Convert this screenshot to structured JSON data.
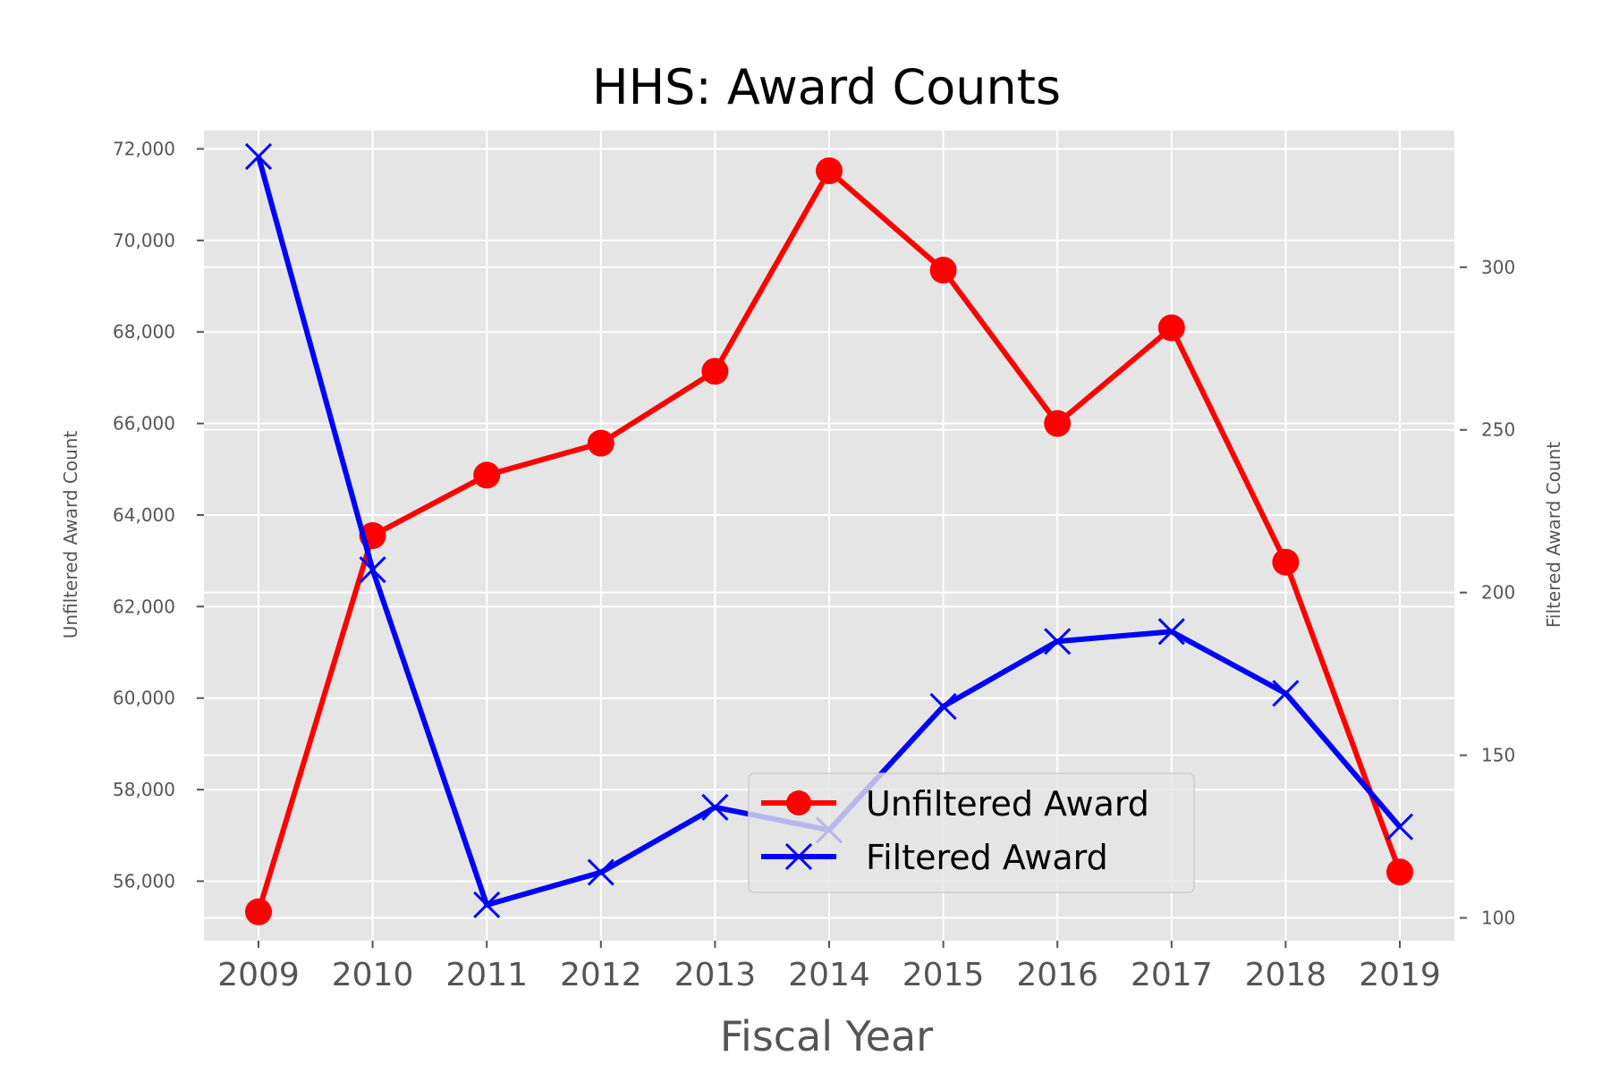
{
  "chart_data": {
    "type": "line",
    "title": "HHS: Award Counts",
    "xlabel": "Fiscal Year",
    "ylabel_left": "Unfiltered Award Count",
    "ylabel_right": "Filtered Award Count",
    "categories": [
      "2009",
      "2010",
      "2011",
      "2012",
      "2013",
      "2014",
      "2015",
      "2016",
      "2017",
      "2018",
      "2019"
    ],
    "y_left_ticks": [
      "56,000",
      "58,000",
      "60,000",
      "62,000",
      "64,000",
      "66,000",
      "68,000",
      "70,000",
      "72,000"
    ],
    "y_right_ticks": [
      "100",
      "150",
      "200",
      "250",
      "300"
    ],
    "ylim_left": [
      54700,
      72400
    ],
    "ylim_right": [
      93,
      342
    ],
    "grid": true,
    "legend_position": "lower-right",
    "series": [
      {
        "name": "Unfiltered Award",
        "axis": "left",
        "color": "#ff0000",
        "marker": "circle",
        "values": [
          55330,
          63550,
          64870,
          65570,
          67140,
          71520,
          69350,
          66000,
          68090,
          62970,
          56200
        ]
      },
      {
        "name": "Filtered Award",
        "axis": "right",
        "color": "#0000ff",
        "marker": "x",
        "values": [
          334,
          207,
          104,
          114,
          134,
          127,
          165,
          185,
          188,
          169,
          128
        ]
      }
    ]
  }
}
